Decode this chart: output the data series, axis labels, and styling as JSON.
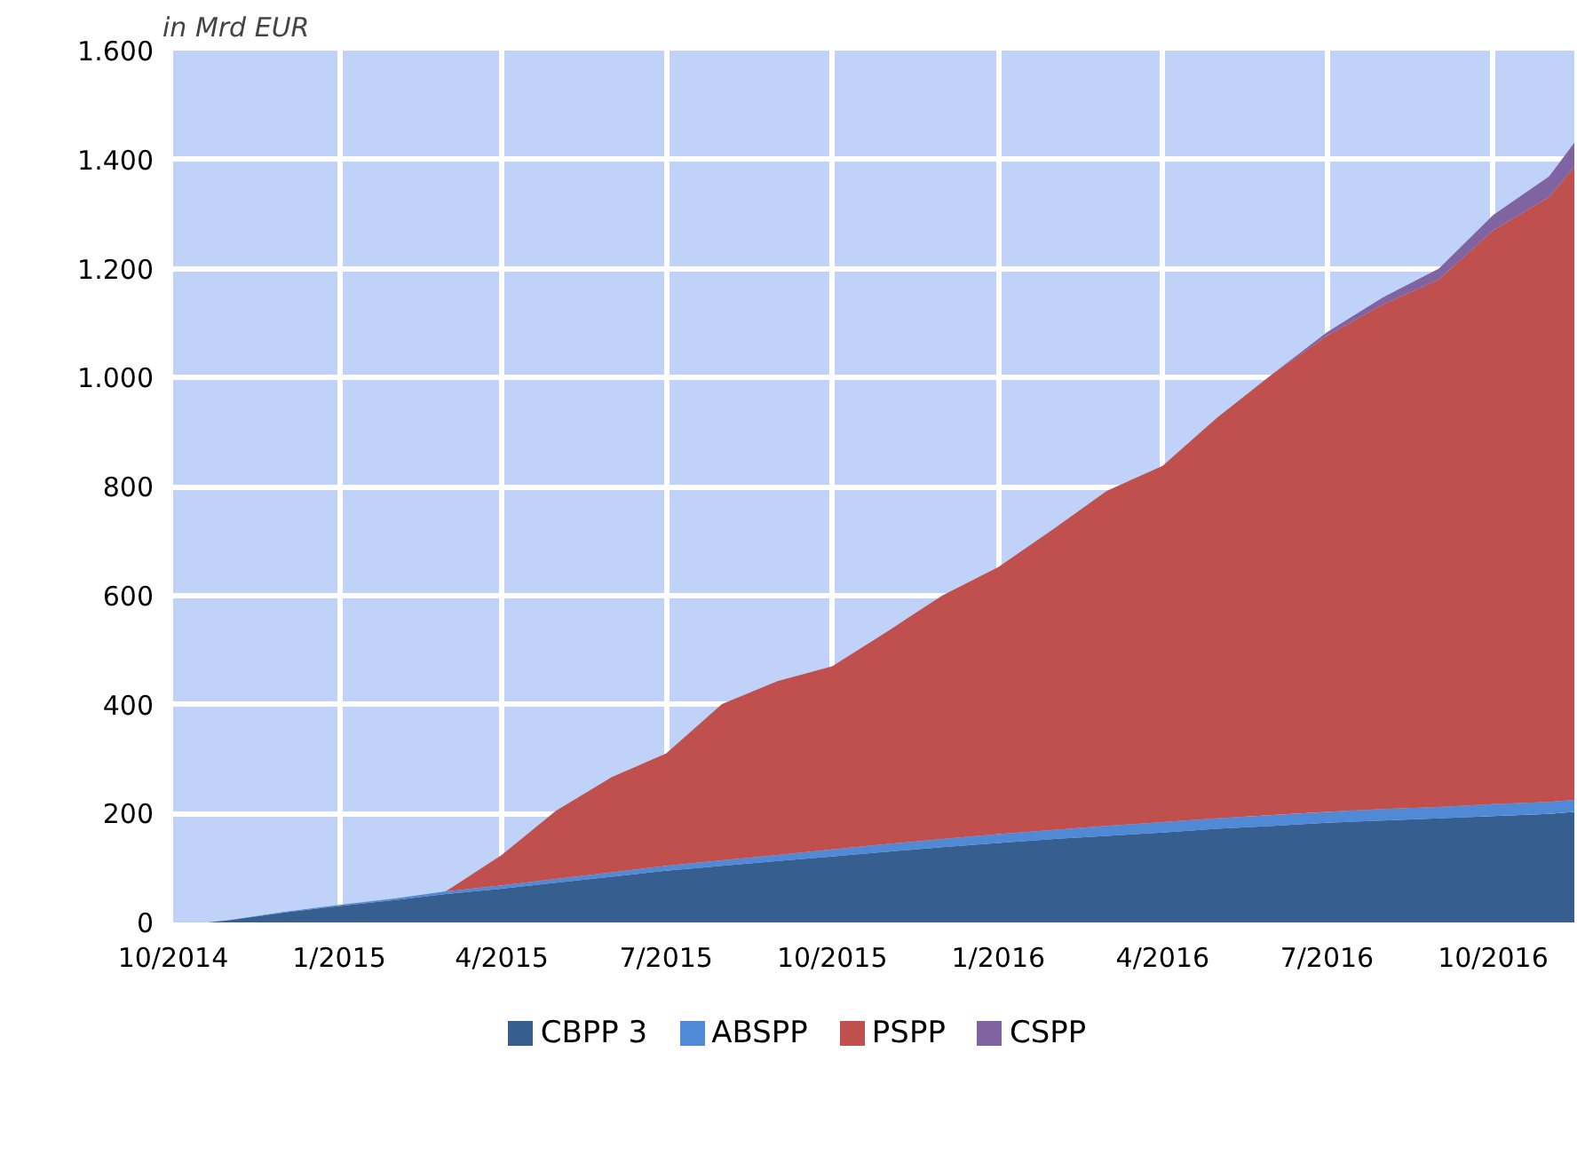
{
  "chart_data": {
    "type": "area",
    "stacked": true,
    "ylabel": "in Mrd EUR",
    "x": [
      "2014-10-20",
      "2014-11-01",
      "2014-12-01",
      "2015-01-01",
      "2015-02-01",
      "2015-03-01",
      "2015-04-01",
      "2015-05-01",
      "2015-06-01",
      "2015-07-01",
      "2015-08-01",
      "2015-09-01",
      "2015-10-01",
      "2015-11-01",
      "2015-12-01",
      "2016-01-01",
      "2016-02-01",
      "2016-03-01",
      "2016-04-01",
      "2016-05-01",
      "2016-06-01",
      "2016-07-01",
      "2016-08-01",
      "2016-09-01",
      "2016-10-01",
      "2016-11-01",
      "2016-11-15"
    ],
    "series": [
      {
        "name": "CBPP 3",
        "color": "#365e8f",
        "values": [
          0,
          4,
          18,
          30,
          41,
          52,
          62,
          73,
          84,
          95,
          104,
          113,
          121,
          130,
          138,
          146,
          153,
          159,
          165,
          172,
          177,
          183,
          187,
          191,
          195,
          199,
          203
        ]
      },
      {
        "name": "ABSPP",
        "color": "#5089d5",
        "values": [
          0,
          0,
          1,
          2,
          3,
          5,
          6,
          7,
          8,
          9,
          10,
          11,
          13,
          14,
          15,
          16,
          17,
          18,
          19,
          19,
          20,
          20,
          21,
          21,
          22,
          22,
          22
        ]
      },
      {
        "name": "PSPP",
        "color": "#c0504d",
        "values": [
          0,
          0,
          0,
          0,
          0,
          0,
          56,
          125,
          175,
          206,
          287,
          319,
          336,
          391,
          447,
          490,
          553,
          615,
          654,
          735,
          810,
          874,
          926,
          968,
          1053,
          1110,
          1162
        ]
      },
      {
        "name": "CSPP",
        "color": "#8064a2",
        "values": [
          0,
          0,
          0,
          0,
          0,
          0,
          0,
          0,
          0,
          0,
          0,
          0,
          0,
          0,
          0,
          0,
          0,
          0,
          0,
          0,
          0,
          6,
          13,
          20,
          28,
          38,
          44
        ]
      }
    ],
    "xlim": [
      "2014-10-01",
      "2016-11-15"
    ],
    "xticks": [
      {
        "value": "2014-10-01",
        "label": "10/2014"
      },
      {
        "value": "2015-01-01",
        "label": "1/2015"
      },
      {
        "value": "2015-04-01",
        "label": "4/2015"
      },
      {
        "value": "2015-07-01",
        "label": "7/2015"
      },
      {
        "value": "2015-10-01",
        "label": "10/2015"
      },
      {
        "value": "2016-01-01",
        "label": "1/2016"
      },
      {
        "value": "2016-04-01",
        "label": "4/2016"
      },
      {
        "value": "2016-07-01",
        "label": "7/2016"
      },
      {
        "value": "2016-10-01",
        "label": "10/2016"
      }
    ],
    "ylim": [
      0,
      1600
    ],
    "yticks": [
      0,
      200,
      400,
      600,
      800,
      {
        "value": 1000,
        "label": "1.000"
      },
      {
        "value": 1200,
        "label": "1.200"
      },
      {
        "value": 1400,
        "label": "1.400"
      },
      {
        "value": 1600,
        "label": "1.600"
      }
    ],
    "grid": true,
    "legend": "bottom"
  }
}
